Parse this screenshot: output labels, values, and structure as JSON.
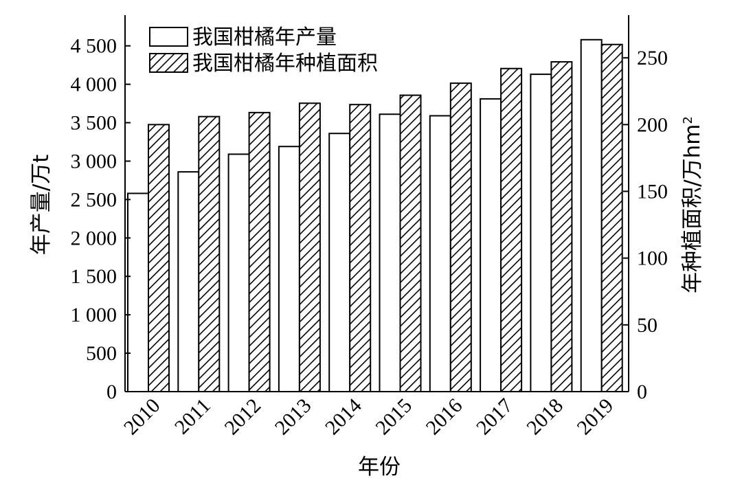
{
  "chart_data": {
    "type": "bar",
    "categories": [
      "2010",
      "2011",
      "2012",
      "2013",
      "2014",
      "2015",
      "2016",
      "2017",
      "2018",
      "2019"
    ],
    "series": [
      {
        "name": "我国柑橘年产量",
        "axis": "left",
        "pattern": "none",
        "values": [
          2580,
          2860,
          3090,
          3190,
          3360,
          3610,
          3590,
          3810,
          4130,
          4580
        ]
      },
      {
        "name": "我国柑橘年种植面积",
        "axis": "right",
        "pattern": "diagonal-hatch",
        "values": [
          200,
          206,
          209,
          216,
          215,
          222,
          231,
          242,
          247,
          260
        ]
      }
    ],
    "xlabel": "年份",
    "ylabel": "年产量/万t",
    "y2label_text": "年种植面积/万hm",
    "y2label_superscript": "2",
    "ylim": [
      0,
      4900
    ],
    "y2lim": [
      0,
      282
    ],
    "yticks": [
      0,
      500,
      1000,
      1500,
      2000,
      2500,
      3000,
      3500,
      4000,
      4500
    ],
    "ytick_labels": [
      "0",
      "500",
      "1 000",
      "1 500",
      "2 000",
      "2 500",
      "3 000",
      "3 500",
      "4 000",
      "4 500"
    ],
    "y2ticks": [
      0,
      50,
      100,
      150,
      200,
      250
    ],
    "y2tick_labels": [
      "0",
      "50",
      "100",
      "150",
      "200",
      "250"
    ],
    "legend_position": "top-left",
    "grid": false,
    "colors": {
      "bar_fill": "#ffffff",
      "stroke": "#000000",
      "hatch": "#000000"
    }
  }
}
